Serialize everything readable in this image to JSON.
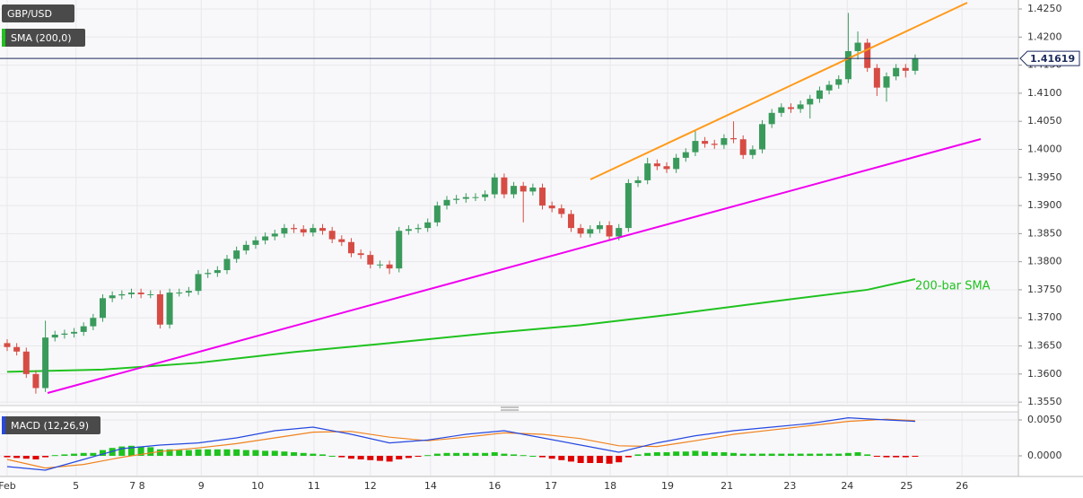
{
  "chart_data": [
    {
      "type": "candlestick",
      "title": "GBP/USD",
      "open": [
        1.3655,
        1.3648,
        1.364,
        1.36,
        1.3575,
        1.3665,
        1.367,
        1.3672,
        1.3675,
        1.3685,
        1.37,
        1.3735,
        1.374,
        1.3742,
        1.3745,
        1.3742,
        1.3742,
        1.3688,
        1.3745,
        1.3745,
        1.3748,
        1.3778,
        1.378,
        1.3785,
        1.3805,
        1.382,
        1.383,
        1.3838,
        1.3845,
        1.385,
        1.386,
        1.3858,
        1.3852,
        1.386,
        1.3855,
        1.384,
        1.3835,
        1.3815,
        1.3812,
        1.3795,
        1.3795,
        1.3788,
        1.3855,
        1.3858,
        1.386,
        1.387,
        1.39,
        1.391,
        1.3912,
        1.3915,
        1.3915,
        1.392,
        1.395,
        1.392,
        1.3935,
        1.3925,
        1.3932,
        1.39,
        1.3895,
        1.3885,
        1.386,
        1.385,
        1.3858,
        1.3865,
        1.3845,
        1.386,
        1.394,
        1.3945,
        1.3975,
        1.397,
        1.3965,
        1.3985,
        1.3995,
        1.4015,
        1.401,
        1.4008,
        1.402,
        1.4018,
        1.399,
        1.4,
        1.4045,
        1.4065,
        1.4075,
        1.4072,
        1.408,
        1.409,
        1.4105,
        1.4115,
        1.4125,
        1.4175,
        1.419,
        1.4145,
        1.411,
        1.413,
        1.4145,
        1.414
      ],
      "high": [
        1.3662,
        1.3655,
        1.3647,
        1.3607,
        1.3695,
        1.3677,
        1.3679,
        1.3682,
        1.3692,
        1.3707,
        1.3742,
        1.3747,
        1.3749,
        1.3752,
        1.3752,
        1.3749,
        1.3749,
        1.3752,
        1.3752,
        1.3755,
        1.3785,
        1.3787,
        1.3792,
        1.3812,
        1.3827,
        1.3837,
        1.3845,
        1.3852,
        1.3857,
        1.3867,
        1.3867,
        1.3865,
        1.3867,
        1.3867,
        1.3862,
        1.3847,
        1.3842,
        1.3822,
        1.3819,
        1.3802,
        1.3802,
        1.3862,
        1.3865,
        1.3867,
        1.3877,
        1.3907,
        1.3917,
        1.3919,
        1.3922,
        1.3922,
        1.3927,
        1.3957,
        1.3957,
        1.3942,
        1.3942,
        1.3939,
        1.3939,
        1.3907,
        1.3902,
        1.3892,
        1.3867,
        1.3865,
        1.3872,
        1.3872,
        1.3867,
        1.3947,
        1.3952,
        1.3985,
        1.3982,
        1.3977,
        1.3992,
        1.4002,
        1.4035,
        1.4022,
        1.4017,
        1.4027,
        1.405,
        1.4025,
        1.4007,
        1.4052,
        1.4072,
        1.4082,
        1.4082,
        1.4087,
        1.4097,
        1.4112,
        1.4122,
        1.4132,
        1.4243,
        1.421,
        1.4197,
        1.4152,
        1.4137,
        1.4152,
        1.4152,
        1.4169
      ],
      "low": [
        1.3641,
        1.3633,
        1.3593,
        1.3565,
        1.3568,
        1.3658,
        1.3663,
        1.3665,
        1.3668,
        1.3678,
        1.3693,
        1.3728,
        1.3733,
        1.3735,
        1.3735,
        1.3735,
        1.3681,
        1.3681,
        1.3738,
        1.3738,
        1.3741,
        1.3771,
        1.3773,
        1.3778,
        1.3798,
        1.3813,
        1.3823,
        1.3831,
        1.3838,
        1.3843,
        1.3851,
        1.3845,
        1.3845,
        1.3848,
        1.3833,
        1.3828,
        1.3808,
        1.3805,
        1.3788,
        1.3788,
        1.3778,
        1.3781,
        1.3848,
        1.3851,
        1.3853,
        1.3863,
        1.3893,
        1.3903,
        1.3905,
        1.3908,
        1.3908,
        1.3913,
        1.3913,
        1.3913,
        1.387,
        1.3918,
        1.3893,
        1.3888,
        1.3878,
        1.3853,
        1.3843,
        1.3843,
        1.3851,
        1.3838,
        1.3838,
        1.3853,
        1.3933,
        1.3938,
        1.3963,
        1.3958,
        1.3958,
        1.3978,
        1.3988,
        1.4003,
        1.4001,
        1.4001,
        1.4011,
        1.3983,
        1.3983,
        1.3993,
        1.4038,
        1.4058,
        1.4065,
        1.4065,
        1.4055,
        1.4083,
        1.4098,
        1.4108,
        1.4118,
        1.416,
        1.4138,
        1.4095,
        1.4085,
        1.4123,
        1.4128,
        1.4133
      ],
      "close": [
        1.3648,
        1.364,
        1.36,
        1.3575,
        1.3665,
        1.367,
        1.3672,
        1.3675,
        1.3685,
        1.37,
        1.3735,
        1.374,
        1.3742,
        1.3745,
        1.3742,
        1.3742,
        1.3688,
        1.3745,
        1.3745,
        1.3748,
        1.3778,
        1.378,
        1.3785,
        1.3805,
        1.382,
        1.383,
        1.3838,
        1.3845,
        1.385,
        1.386,
        1.3858,
        1.3852,
        1.386,
        1.3855,
        1.384,
        1.3835,
        1.3815,
        1.3812,
        1.3795,
        1.3795,
        1.3788,
        1.3855,
        1.3858,
        1.386,
        1.387,
        1.39,
        1.391,
        1.3912,
        1.3915,
        1.3915,
        1.392,
        1.395,
        1.392,
        1.3935,
        1.3925,
        1.3932,
        1.39,
        1.3895,
        1.3885,
        1.386,
        1.385,
        1.3858,
        1.3865,
        1.3845,
        1.386,
        1.394,
        1.3945,
        1.3975,
        1.397,
        1.3965,
        1.3985,
        1.3995,
        1.4015,
        1.401,
        1.4008,
        1.402,
        1.4018,
        1.399,
        1.4,
        1.4045,
        1.4065,
        1.4075,
        1.4072,
        1.408,
        1.409,
        1.4105,
        1.4115,
        1.4125,
        1.4175,
        1.419,
        1.4145,
        1.411,
        1.413,
        1.4145,
        1.414,
        1.4162
      ],
      "up_color": "#3a9a5c",
      "down_color": "#d64c44",
      "sma": {
        "name": "SMA (200,0)",
        "color": "#1fc21f",
        "x": [
          0,
          10,
          20,
          30,
          40,
          50,
          60,
          70,
          80,
          90,
          95
        ],
        "values": [
          1.3604,
          1.3608,
          1.362,
          1.3639,
          1.3655,
          1.3672,
          1.3687,
          1.3707,
          1.3729,
          1.375,
          1.3769
        ]
      },
      "annotation": "200-bar SMA",
      "last_price": 1.41619,
      "xlim": [
        -0.75,
        105.8
      ],
      "xticks": [
        {
          "value": 0,
          "label": "Feb"
        },
        {
          "value": 7.2,
          "label": "5"
        },
        {
          "value": 13.6,
          "label": "7 8"
        },
        {
          "value": 20.3,
          "label": "9"
        },
        {
          "value": 26.2,
          "label": "10"
        },
        {
          "value": 32.1,
          "label": "11"
        },
        {
          "value": 38.0,
          "label": "12"
        },
        {
          "value": 44.3,
          "label": "14"
        },
        {
          "value": 51.0,
          "label": "16"
        },
        {
          "value": 56.9,
          "label": "17"
        },
        {
          "value": 63.1,
          "label": "18"
        },
        {
          "value": 69.1,
          "label": "19"
        },
        {
          "value": 75.3,
          "label": "21"
        },
        {
          "value": 81.9,
          "label": "23"
        },
        {
          "value": 87.9,
          "label": "24"
        },
        {
          "value": 94.1,
          "label": "25"
        },
        {
          "value": 99.9,
          "label": "26"
        }
      ],
      "ylim": [
        1.3547,
        1.4266
      ],
      "yticks": [
        {
          "value": 1.355,
          "label": "1.3550"
        },
        {
          "value": 1.36,
          "label": "1.3600"
        },
        {
          "value": 1.365,
          "label": "1.3650"
        },
        {
          "value": 1.37,
          "label": "1.3700"
        },
        {
          "value": 1.375,
          "label": "1.3750"
        },
        {
          "value": 1.38,
          "label": "1.3800"
        },
        {
          "value": 1.385,
          "label": "1.3850"
        },
        {
          "value": 1.39,
          "label": "1.3900"
        },
        {
          "value": 1.395,
          "label": "1.3950"
        },
        {
          "value": 1.4,
          "label": "1.4000"
        },
        {
          "value": 1.405,
          "label": "1.4050"
        },
        {
          "value": 1.41,
          "label": "1.4100"
        },
        {
          "value": 1.415,
          "label": "1.4150"
        },
        {
          "value": 1.42,
          "label": "1.4200"
        },
        {
          "value": 1.425,
          "label": "1.4250"
        }
      ],
      "grid": true
    },
    {
      "type": "macd",
      "title": "MACD (12,26,9)",
      "histogram": [
        -0.0002,
        -0.0003,
        -0.0004,
        -0.0005,
        -0.0002,
        0.0001,
        0.0002,
        0.0003,
        0.0004,
        0.0004,
        0.0008,
        0.0011,
        0.0013,
        0.0014,
        0.0013,
        0.0012,
        0.0009,
        0.0009,
        0.0008,
        0.0008,
        0.0009,
        0.0009,
        0.0009,
        0.0009,
        0.0009,
        0.0008,
        0.0008,
        0.0007,
        0.0007,
        0.0006,
        0.0005,
        0.0004,
        0.0003,
        0.0002,
        0.0,
        -0.0002,
        -0.0004,
        -0.0005,
        -0.0006,
        -0.0007,
        -0.0008,
        -0.0005,
        -0.0003,
        -0.0001,
        0.0001,
        0.0003,
        0.0004,
        0.0004,
        0.0004,
        0.0004,
        0.0004,
        0.0005,
        0.0003,
        0.0002,
        0.0001,
        0.0,
        -0.0002,
        -0.0004,
        -0.0006,
        -0.0008,
        -0.001,
        -0.001,
        -0.001,
        -0.0011,
        -0.0009,
        -0.0002,
        0.0002,
        0.0004,
        0.0005,
        0.0005,
        0.0006,
        0.0006,
        0.0007,
        0.0006,
        0.0005,
        0.0005,
        0.0004,
        0.0003,
        0.0003,
        0.0003,
        0.0003,
        0.0003,
        0.0003,
        0.0003,
        0.0003,
        0.0003,
        0.0003,
        0.0003,
        0.0004,
        0.0005,
        0.0002,
        -0.0001,
        -0.0002,
        -0.0002,
        -0.0002,
        -0.0001
      ],
      "up_color": "#1fc21f",
      "down_color": "#e00000",
      "macd": {
        "color": "#2648e0",
        "x": [
          0,
          4,
          8,
          12,
          16,
          20,
          24,
          28,
          32,
          36,
          40,
          44,
          48,
          52,
          56,
          60,
          64,
          68,
          72,
          76,
          80,
          84,
          88,
          92,
          95
        ],
        "values": [
          -0.0015,
          -0.002,
          -0.0005,
          0.001,
          0.0015,
          0.0018,
          0.0025,
          0.0035,
          0.004,
          0.003,
          0.0018,
          0.0022,
          0.003,
          0.0035,
          0.0025,
          0.0015,
          0.0005,
          0.0018,
          0.0028,
          0.0035,
          0.004,
          0.0045,
          0.0053,
          0.005,
          0.0048
        ]
      },
      "signal": {
        "color": "#f0821e",
        "x": [
          0,
          4,
          8,
          12,
          16,
          20,
          24,
          28,
          32,
          36,
          40,
          44,
          48,
          52,
          56,
          60,
          64,
          68,
          72,
          76,
          80,
          84,
          88,
          92,
          95
        ],
        "values": [
          -0.0005,
          -0.0017,
          -0.0012,
          -0.0002,
          0.0006,
          0.0011,
          0.0017,
          0.0025,
          0.0033,
          0.0034,
          0.0026,
          0.0021,
          0.0026,
          0.0032,
          0.003,
          0.0024,
          0.0014,
          0.0013,
          0.0021,
          0.003,
          0.0036,
          0.0042,
          0.0048,
          0.0051,
          0.0049
        ]
      },
      "ylim": [
        -0.00275,
        0.006
      ],
      "yticks": [
        {
          "value": 0.005,
          "label": "0.0050"
        },
        {
          "value": 0,
          "label": "0.0000"
        }
      ]
    }
  ]
}
